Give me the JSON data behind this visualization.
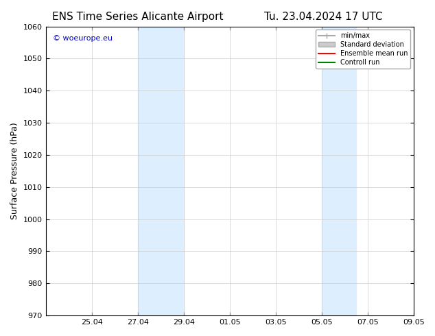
{
  "title_left": "ENS Time Series Alicante Airport",
  "title_right": "Tu. 23.04.2024 17 UTC",
  "ylabel": "Surface Pressure (hPa)",
  "ylim": [
    970,
    1060
  ],
  "yticks": [
    970,
    980,
    990,
    1000,
    1010,
    1020,
    1030,
    1040,
    1050,
    1060
  ],
  "xlim_start": "2024-04-23",
  "xlim_end": "2024-05-10",
  "xtick_labels": [
    "25.04",
    "27.04",
    "29.04",
    "01.05",
    "03.05",
    "05.05",
    "07.05",
    "09.05"
  ],
  "xtick_positions": [
    2,
    4,
    6,
    8,
    10,
    12,
    14,
    16
  ],
  "shaded_bands": [
    {
      "x_start": 4,
      "x_end": 6
    },
    {
      "x_start": 12,
      "x_end": 13
    }
  ],
  "shaded_color": "#ddeeff",
  "grid_color": "#cccccc",
  "background_color": "#ffffff",
  "plot_bg_color": "#ffffff",
  "watermark_text": "© woeurope.eu",
  "watermark_color": "#0000cc",
  "legend_labels": [
    "min/max",
    "Standard deviation",
    "Ensemble mean run",
    "Controll run"
  ],
  "legend_colors": [
    "#aaaaaa",
    "#cccccc",
    "#ff0000",
    "#008000"
  ],
  "legend_linestyles": [
    "-",
    "-",
    "-",
    "-"
  ],
  "title_fontsize": 11,
  "axis_fontsize": 9,
  "tick_fontsize": 8
}
